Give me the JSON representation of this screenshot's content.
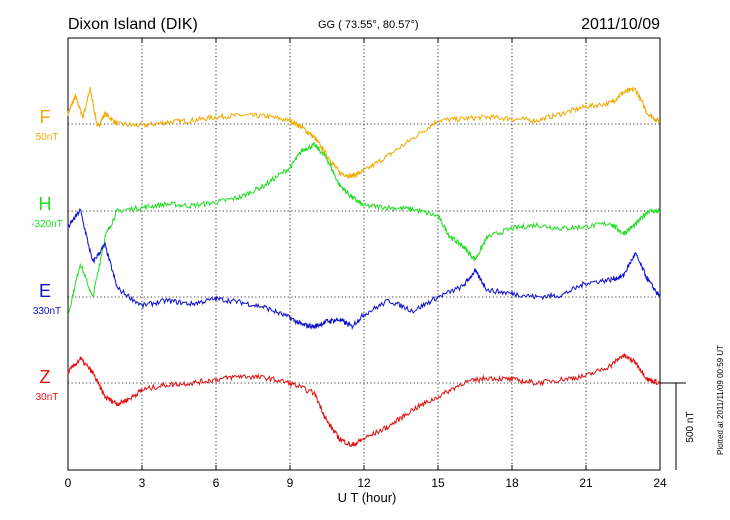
{
  "chart_data": {
    "type": "line",
    "title_left": "Dixon Island (DIK)",
    "title_center": "GG ( 73.55°,  80.57°)",
    "title_right": "2011/10/09",
    "xlabel": "U T (hour)",
    "xlim": [
      0,
      24
    ],
    "x_ticks": [
      "0",
      "3",
      "6",
      "9",
      "12",
      "15",
      "18",
      "21",
      "24"
    ],
    "grid": true,
    "scale_label": "500 nT",
    "side_note": "Plotted at 2011/11/09 00:59 UT",
    "series": [
      {
        "name": "F",
        "baseline": "50nT",
        "color": "#f2a900",
        "x": [
          0,
          0.3,
          0.6,
          0.9,
          1.2,
          1.5,
          2,
          3,
          4,
          5,
          6,
          7,
          8,
          9,
          9.5,
          10,
          10.5,
          11,
          11.5,
          12,
          13,
          14,
          15,
          16,
          17,
          18,
          19,
          20,
          21,
          22,
          22.5,
          23,
          23.5,
          24
        ],
        "y": [
          60,
          160,
          40,
          200,
          -20,
          60,
          0,
          -10,
          10,
          20,
          40,
          50,
          45,
          20,
          -20,
          -80,
          -180,
          -280,
          -300,
          -270,
          -180,
          -80,
          20,
          30,
          40,
          30,
          20,
          60,
          100,
          120,
          180,
          200,
          60,
          10
        ]
      },
      {
        "name": "H",
        "baseline": "-320nT",
        "color": "#22dd22",
        "x": [
          0,
          0.5,
          1,
          1.5,
          2,
          3,
          4,
          5,
          6,
          7,
          8,
          9,
          9.5,
          10,
          10.5,
          11,
          11.5,
          12,
          13,
          14,
          15,
          15.5,
          16,
          16.5,
          17,
          18,
          19,
          20,
          21,
          22,
          22.5,
          23,
          23.5,
          24
        ],
        "y": [
          -600,
          -300,
          -500,
          -150,
          0,
          20,
          40,
          30,
          50,
          80,
          150,
          250,
          350,
          380,
          300,
          150,
          80,
          30,
          20,
          10,
          -30,
          -150,
          -200,
          -280,
          -150,
          -100,
          -80,
          -100,
          -90,
          -70,
          -130,
          -80,
          0,
          0
        ]
      },
      {
        "name": "E",
        "baseline": "330nT",
        "color": "#1111cc",
        "x": [
          0,
          0.5,
          1,
          1.5,
          2,
          3,
          4,
          5,
          6,
          7,
          8,
          9,
          9.5,
          10,
          10.5,
          11,
          11.5,
          12,
          13,
          14,
          15,
          16,
          16.5,
          17,
          18,
          19,
          20,
          21,
          22,
          22.5,
          23,
          23.5,
          24
        ],
        "y": [
          400,
          500,
          200,
          300,
          50,
          -50,
          -20,
          -40,
          -10,
          -30,
          -60,
          -120,
          -160,
          -170,
          -140,
          -130,
          -170,
          -100,
          -20,
          -80,
          0,
          60,
          150,
          40,
          20,
          0,
          10,
          80,
          100,
          120,
          250,
          100,
          0
        ]
      },
      {
        "name": "Z",
        "baseline": "30nT",
        "color": "#e01010",
        "x": [
          0,
          0.5,
          1,
          1.5,
          2,
          2.5,
          3,
          4,
          5,
          6,
          7,
          8,
          9,
          10,
          10.5,
          11,
          11.5,
          12,
          13,
          14,
          15,
          16,
          17,
          18,
          19,
          20,
          21,
          22,
          22.5,
          23,
          23.5,
          24
        ],
        "y": [
          60,
          140,
          60,
          -80,
          -120,
          -90,
          -40,
          -10,
          0,
          20,
          40,
          30,
          0,
          -60,
          -220,
          -320,
          -360,
          -320,
          -250,
          -150,
          -80,
          0,
          30,
          20,
          0,
          20,
          40,
          100,
          160,
          120,
          20,
          0
        ]
      }
    ]
  }
}
